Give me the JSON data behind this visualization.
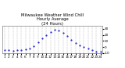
{
  "title": "Milwaukee Weather Wind Chill\nHourly Average\n(24 Hours)",
  "title_fontsize": 3.8,
  "hours": [
    1,
    2,
    3,
    4,
    5,
    6,
    7,
    8,
    9,
    10,
    11,
    12,
    13,
    14,
    15,
    16,
    17,
    18,
    19,
    20,
    21,
    22,
    23,
    24
  ],
  "wind_chill": [
    -5,
    -5,
    -6,
    -5,
    -5,
    -4,
    -3,
    2,
    8,
    14,
    20,
    25,
    28,
    27,
    23,
    18,
    12,
    7,
    3,
    0,
    -3,
    -5,
    -7,
    -7
  ],
  "ylim": [
    -10,
    35
  ],
  "xlim": [
    0.5,
    24.5
  ],
  "dot_color": "#0000cc",
  "bg_color": "#ffffff",
  "grid_color": "#888888",
  "tick_fontsize": 3.0,
  "yticks": [
    -10,
    0,
    10,
    20,
    30
  ],
  "ytick_labels": [
    "-10",
    "0",
    "10",
    "20",
    "30"
  ],
  "xticks": [
    1,
    2,
    3,
    4,
    5,
    6,
    7,
    8,
    9,
    10,
    11,
    12,
    13,
    14,
    15,
    16,
    17,
    18,
    19,
    20,
    21,
    22,
    23,
    24
  ],
  "xtick_labels": [
    "1",
    "2",
    "3",
    "4",
    "5",
    "6",
    "7",
    "8",
    "9",
    "10",
    "11",
    "12",
    "13",
    "14",
    "15",
    "16",
    "17",
    "18",
    "19",
    "20",
    "21",
    "22",
    "23",
    "24"
  ]
}
